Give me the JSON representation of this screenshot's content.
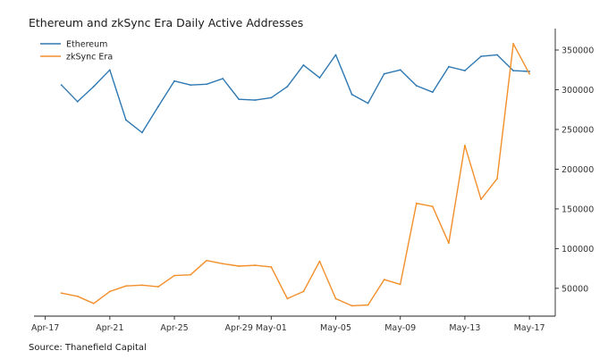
{
  "chart_data": {
    "type": "line",
    "title": "Ethereum and zkSync Era Daily Active Addresses",
    "source": "Source: Thanefield Capital",
    "xlabel": "",
    "ylabel": "",
    "x_ticks": [
      "Apr-17",
      "Apr-21",
      "Apr-25",
      "Apr-29",
      "May-01",
      "May-05",
      "May-09",
      "May-13",
      "May-17"
    ],
    "x_tick_days": [
      0,
      4,
      8,
      12,
      14,
      18,
      22,
      26,
      30
    ],
    "y_ticks": [
      "50000",
      "100000",
      "150000",
      "200000",
      "250000",
      "300000",
      "350000"
    ],
    "y_tick_values": [
      50000,
      100000,
      150000,
      200000,
      250000,
      300000,
      350000
    ],
    "ylim": [
      15000,
      377000
    ],
    "xlim_days": [
      -0.7,
      31.6
    ],
    "y_axis_side": "right",
    "legend_position": "top-left",
    "grid": false,
    "x_days": [
      1,
      2,
      3,
      4,
      5,
      6,
      7,
      8,
      9,
      10,
      11,
      12,
      13,
      14,
      15,
      16,
      17,
      18,
      19,
      20,
      21,
      22,
      23,
      24,
      25,
      26,
      27,
      28,
      29,
      30
    ],
    "x": [
      "Apr-18",
      "Apr-19",
      "Apr-20",
      "Apr-21",
      "Apr-22",
      "Apr-23",
      "Apr-24",
      "Apr-25",
      "Apr-26",
      "Apr-27",
      "Apr-28",
      "Apr-29",
      "Apr-30",
      "May-01",
      "May-02",
      "May-03",
      "May-04",
      "May-05",
      "May-06",
      "May-07",
      "May-08",
      "May-09",
      "May-10",
      "May-11",
      "May-12",
      "May-13",
      "May-14",
      "May-15",
      "May-16",
      "May-17"
    ],
    "series": [
      {
        "name": "Ethereum",
        "color": "#2e78b2",
        "values": [
          306000,
          285000,
          304000,
          325000,
          262000,
          246000,
          279000,
          311000,
          306000,
          307000,
          314000,
          288000,
          287000,
          290000,
          304000,
          331000,
          315000,
          344000,
          294000,
          283000,
          320000,
          325000,
          305000,
          297000,
          329000,
          324000,
          342000,
          344000,
          324000,
          323000
        ]
      },
      {
        "name": "zkSync Era",
        "color": "#f28f2a",
        "values": [
          44000,
          40000,
          31000,
          46000,
          53000,
          54000,
          52000,
          66000,
          67000,
          85000,
          81000,
          78000,
          79000,
          77000,
          37000,
          46000,
          84000,
          37000,
          28000,
          29000,
          61000,
          55000,
          157000,
          153000,
          107000,
          230000,
          162000,
          188000,
          358000,
          320000
        ]
      }
    ]
  }
}
